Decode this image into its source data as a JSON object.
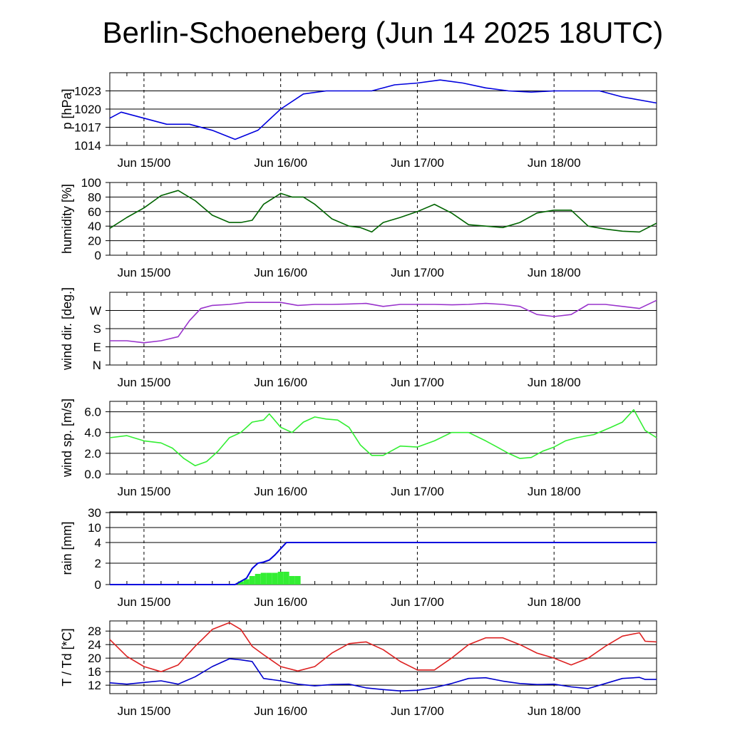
{
  "title": "Berlin-Schoeneberg (Jun 14 2025 18UTC)",
  "colors": {
    "pressure": "#0000dd",
    "humidity": "#006400",
    "wind_dir": "#9933cc",
    "wind_speed": "#33ee33",
    "rain_total": "#0000dd",
    "rain_bars": "#33ee33",
    "temperature": "#dd2222",
    "dewpoint": "#0000cc"
  },
  "chart_data": [
    {
      "type": "line",
      "panel": "pressure",
      "ylabel": "p [hPa]",
      "yticks": [
        "1014",
        "1017",
        "1020",
        "1023"
      ],
      "ylim": [
        1014,
        1026
      ],
      "xticks": [
        "Jun 15/00",
        "Jun 16/00",
        "Jun 17/00",
        "Jun 18/00"
      ],
      "x": [
        -6,
        -4,
        0,
        4,
        8,
        12,
        16,
        20,
        24,
        28,
        32,
        36,
        40,
        44,
        48,
        52,
        56,
        60,
        64,
        68,
        72,
        76,
        80,
        84,
        90
      ],
      "series": [
        {
          "values": [
            1018.5,
            1019.5,
            1018.5,
            1017.5,
            1017.5,
            1016.5,
            1015,
            1016.5,
            1020,
            1022.5,
            1023,
            1023,
            1023,
            1024,
            1024.3,
            1024.8,
            1024.3,
            1023.5,
            1023,
            1022.8,
            1023,
            1023,
            1023,
            1022,
            1021
          ]
        }
      ]
    },
    {
      "type": "line",
      "panel": "humidity",
      "ylabel": "humidity [%]",
      "yticks": [
        "0",
        "20",
        "40",
        "60",
        "80",
        "100"
      ],
      "ylim": [
        0,
        100
      ],
      "xticks": [
        "Jun 15/00",
        "Jun 16/00",
        "Jun 17/00",
        "Jun 18/00"
      ],
      "x": [
        -6,
        -3,
        0,
        3,
        6,
        9,
        12,
        15,
        17,
        19,
        21,
        24,
        26,
        28,
        30,
        33,
        36,
        38,
        40,
        42,
        45,
        48,
        51,
        54,
        57,
        60,
        63,
        66,
        69,
        72,
        75,
        78,
        81,
        84,
        87,
        90
      ],
      "series": [
        {
          "values": [
            37,
            52,
            65,
            82,
            89,
            75,
            55,
            45,
            45,
            48,
            70,
            85,
            80,
            80,
            70,
            50,
            40,
            38,
            32,
            45,
            52,
            60,
            70,
            58,
            42,
            40,
            38,
            45,
            58,
            62,
            62,
            40,
            36,
            33,
            32,
            44
          ]
        }
      ]
    },
    {
      "type": "line",
      "panel": "wind_direction",
      "ylabel": "wind dir. [deg.]",
      "yticks": [
        "N",
        "E",
        "S",
        "W"
      ],
      "ylim": [
        0,
        360
      ],
      "xticks": [
        "Jun 15/00",
        "Jun 16/00",
        "Jun 17/00",
        "Jun 18/00"
      ],
      "x": [
        -6,
        -3,
        0,
        3,
        6,
        8,
        10,
        12,
        15,
        18,
        21,
        24,
        27,
        30,
        33,
        36,
        39,
        42,
        45,
        48,
        51,
        54,
        57,
        60,
        63,
        66,
        69,
        72,
        75,
        78,
        81,
        84,
        87,
        90
      ],
      "series": [
        {
          "values": [
            120,
            120,
            110,
            120,
            140,
            220,
            280,
            295,
            300,
            310,
            310,
            310,
            295,
            300,
            300,
            302,
            305,
            290,
            300,
            300,
            300,
            298,
            300,
            305,
            300,
            290,
            250,
            240,
            250,
            300,
            300,
            290,
            280,
            320
          ]
        }
      ]
    },
    {
      "type": "line",
      "panel": "wind_speed",
      "ylabel": "wind sp. [m/s]",
      "yticks": [
        "0.0",
        "2.0",
        "4.0",
        "6.0"
      ],
      "ylim": [
        0,
        7
      ],
      "xticks": [
        "Jun 15/00",
        "Jun 16/00",
        "Jun 17/00",
        "Jun 18/00"
      ],
      "x": [
        -6,
        -3,
        0,
        3,
        5,
        7,
        9,
        11,
        13,
        15,
        17,
        19,
        21,
        22,
        24,
        26,
        28,
        30,
        32,
        34,
        36,
        38,
        40,
        42,
        45,
        48,
        51,
        54,
        57,
        60,
        62,
        64,
        66,
        68,
        70,
        72,
        74,
        76,
        79,
        82,
        84,
        86,
        88,
        90
      ],
      "series": [
        {
          "values": [
            3.5,
            3.7,
            3.2,
            3.0,
            2.5,
            1.5,
            0.8,
            1.2,
            2.2,
            3.5,
            4.0,
            5.0,
            5.2,
            5.8,
            4.5,
            4.0,
            5.0,
            5.5,
            5.3,
            5.2,
            4.5,
            2.8,
            1.8,
            1.8,
            2.7,
            2.6,
            3.2,
            4.0,
            4.0,
            3.2,
            2.6,
            2.0,
            1.5,
            1.6,
            2.2,
            2.6,
            3.2,
            3.5,
            3.8,
            4.5,
            5.0,
            6.2,
            4.2,
            3.5
          ]
        }
      ]
    },
    {
      "type": "bar",
      "panel": "rain",
      "ylabel": "rain [mm]",
      "yticks": [
        "0",
        "2",
        "4",
        "10",
        "30"
      ],
      "xticks": [
        "Jun 15/00",
        "Jun 16/00",
        "Jun 17/00",
        "Jun 18/00"
      ],
      "bars": {
        "x": [
          17,
          18,
          19,
          20,
          21,
          22,
          23,
          24,
          25,
          26,
          27
        ],
        "values": [
          0.3,
          0.5,
          0.8,
          1.0,
          1.1,
          1.1,
          1.1,
          1.2,
          1.2,
          0.8,
          0.8
        ]
      },
      "total": {
        "x": [
          -6,
          16,
          18,
          19,
          20,
          21,
          22,
          23,
          24,
          25,
          90
        ],
        "values": [
          0,
          0,
          0.6,
          1.5,
          2.0,
          2.1,
          2.3,
          2.8,
          3.4,
          4.0,
          4.0
        ]
      }
    },
    {
      "type": "line",
      "panel": "temperature",
      "ylabel": "T / Td [*C]",
      "yticks": [
        "12",
        "16",
        "20",
        "24",
        "28"
      ],
      "ylim": [
        9.5,
        31
      ],
      "xticks": [
        "Jun 15/00",
        "Jun 16/00",
        "Jun 17/00",
        "Jun 18/00"
      ],
      "x": [
        -6,
        -3,
        0,
        3,
        6,
        9,
        12,
        15,
        17,
        19,
        21,
        24,
        27,
        30,
        33,
        36,
        39,
        42,
        45,
        48,
        51,
        54,
        57,
        60,
        63,
        66,
        69,
        72,
        75,
        78,
        81,
        84,
        87,
        88,
        90
      ],
      "series": [
        {
          "name": "T",
          "values": [
            25.5,
            20.5,
            17.5,
            16,
            18,
            23.5,
            28.5,
            30.5,
            28.5,
            23.5,
            21,
            17.5,
            16.2,
            17.5,
            21.5,
            24.3,
            24.8,
            22.5,
            19,
            16.5,
            16.5,
            20,
            24,
            26,
            26,
            24,
            21.5,
            20,
            18,
            20,
            23.5,
            26.5,
            27.5,
            25,
            24.8
          ]
        },
        {
          "name": "Td",
          "values": [
            12.7,
            12.3,
            12.8,
            13.3,
            12.3,
            14.5,
            17.5,
            19.8,
            19.5,
            19,
            14,
            13.3,
            12.3,
            11.8,
            12.2,
            12.3,
            11.2,
            10.7,
            10.3,
            10.5,
            11.3,
            12.5,
            14,
            14.2,
            13.2,
            12.5,
            12.2,
            12.3,
            11.5,
            11,
            12.5,
            14,
            14.3,
            13.7,
            13.7
          ]
        }
      ]
    }
  ]
}
